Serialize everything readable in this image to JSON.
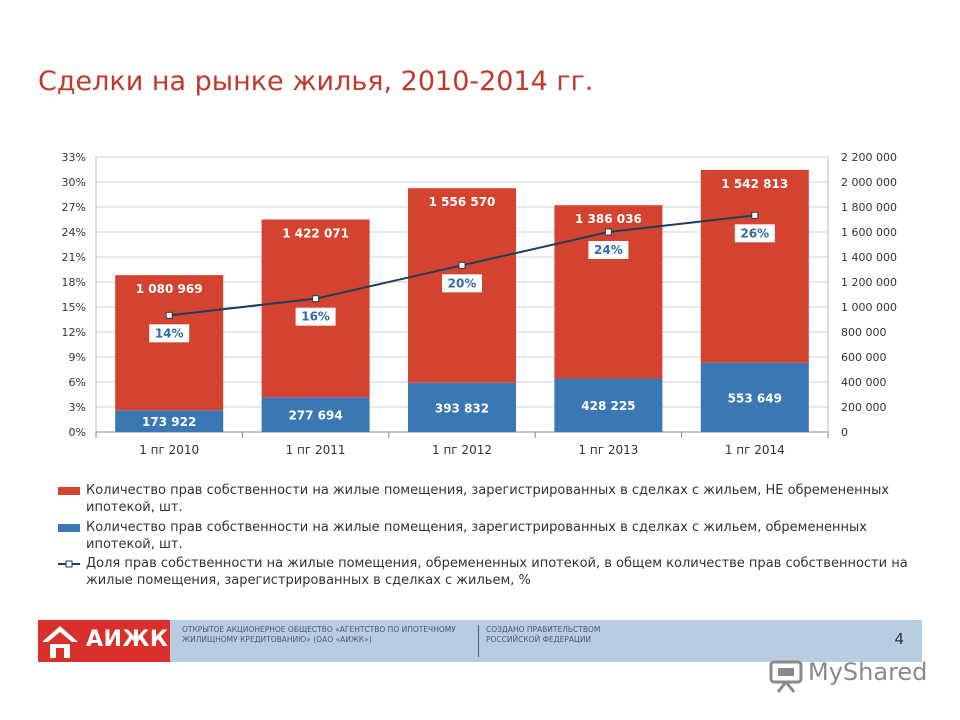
{
  "page": {
    "title": "Сделки на рынке жилья, 2010-2014 гг.",
    "page_number": "4"
  },
  "colors": {
    "red": "#d4432f",
    "blue": "#3a78b5",
    "line": "#1f3d5c",
    "title": "#c0392b"
  },
  "chart_data": {
    "type": "bar",
    "stacked": true,
    "categories": [
      "1 пг 2010",
      "1 пг 2011",
      "1 пг 2012",
      "1 пг 2013",
      "1 пг 2014"
    ],
    "series": [
      {
        "values": [
          173922,
          277694,
          393832,
          428225,
          553649
        ],
        "labels": [
          "173 922",
          "277 694",
          "393 832",
          "428 225",
          "553 649"
        ],
        "color": "#3a78b5",
        "axis": "right"
      },
      {
        "values": [
          1080969,
          1422071,
          1556570,
          1386036,
          1542813
        ],
        "labels": [
          "1 080 969",
          "1 422 071",
          "1 556 570",
          "1 386 036",
          "1 542 813"
        ],
        "color": "#d4432f",
        "axis": "right"
      }
    ],
    "line": {
      "type": "line",
      "values": [
        14,
        16,
        20,
        24,
        26
      ],
      "labels": [
        "14%",
        "16%",
        "20%",
        "24%",
        "26%"
      ],
      "axis": "left",
      "color": "#1f3d5c"
    },
    "left_axis": {
      "ylim": [
        0,
        33
      ],
      "ticks": [
        "0%",
        "3%",
        "6%",
        "9%",
        "12%",
        "15%",
        "18%",
        "21%",
        "24%",
        "27%",
        "30%",
        "33%"
      ]
    },
    "right_axis": {
      "ylim": [
        0,
        2200000
      ],
      "ticks": [
        "0",
        "200 000",
        "400 000",
        "600 000",
        "800 000",
        "1 000 000",
        "1 200 000",
        "1 400 000",
        "1 600 000",
        "1 800 000",
        "2 000 000",
        "2 200 000"
      ]
    },
    "grid": true,
    "legend_position": "bottom"
  },
  "legend": [
    {
      "text": "Количество прав собственности на жилые помещения, зарегистрированных  в сделках с жильем, НЕ обремененных ипотекой, шт."
    },
    {
      "text": "Количество прав собственности на жилые помещения, зарегистрированных  в сделках с жильем, обремененных ипотекой, шт."
    },
    {
      "text": "Доля прав собственности на жилые помещения, обремененных ипотекой, в общем количестве прав собственности на жилые помещения, зарегистрированных  в сделках с жильем, %"
    }
  ],
  "footer": {
    "logo": "АИЖК",
    "org": "ОТКРЫТОЕ АКЦИОНЕРНОЕ ОБЩЕСТВО «АГЕНТСТВО ПО ИПОТЕЧНОМУ ЖИЛИЩНОМУ КРЕДИТОВАНИЮ» (ОАО «АИЖК»)",
    "created": "СОЗДАНО ПРАВИТЕЛЬСТВОМ РОССИЙСКОЙ ФЕДЕРАЦИИ"
  },
  "watermark": {
    "text": "MyShared"
  }
}
